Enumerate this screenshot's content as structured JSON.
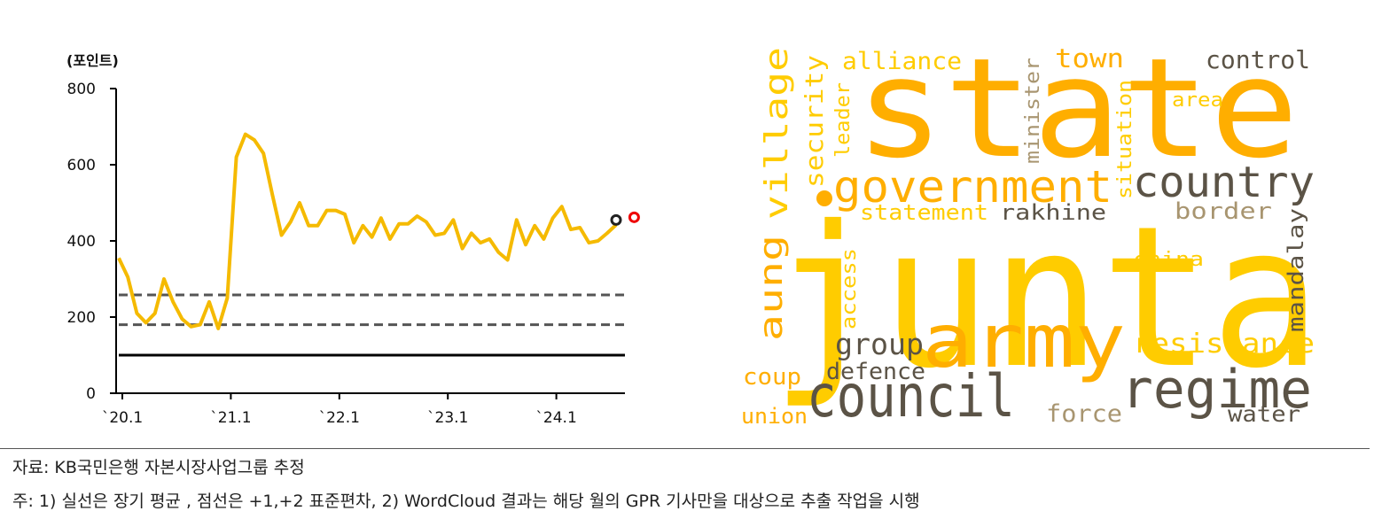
{
  "chart_data": [
    {
      "type": "line",
      "ylabel": "(포인트)",
      "ylim": [
        0,
        800
      ],
      "yticks": [
        0,
        200,
        400,
        600,
        800
      ],
      "xticks": [
        "`20.1",
        "`21.1",
        "`22.1",
        "`23.1",
        "`24.1"
      ],
      "xtick_month_index": [
        0,
        12,
        24,
        36,
        48
      ],
      "grid": false,
      "series": [
        {
          "color": "#F5BA00",
          "values": [
            355,
            305,
            210,
            185,
            210,
            300,
            240,
            195,
            175,
            180,
            240,
            170,
            250,
            620,
            680,
            665,
            630,
            520,
            415,
            450,
            500,
            440,
            440,
            480,
            480,
            470,
            395,
            440,
            410,
            460,
            405,
            445,
            445,
            465,
            450,
            415,
            420,
            455,
            380,
            420,
            395,
            405,
            370,
            350,
            455,
            390,
            440,
            405,
            460,
            490,
            430,
            435,
            395,
            400,
            420,
            442
          ]
        }
      ],
      "reference_lines": [
        {
          "value": 100,
          "style": "solid",
          "color": "#000000"
        },
        {
          "value": 180,
          "style": "dashed",
          "color": "#555555"
        },
        {
          "value": 258,
          "style": "dashed",
          "color": "#555555"
        }
      ],
      "markers": [
        {
          "month_index": 55,
          "value": 455,
          "color": "#222222"
        },
        {
          "month_index": 57,
          "value": 462,
          "color": "#EE0000"
        }
      ]
    },
    {
      "type": "wordcloud",
      "words": [
        {
          "text": "state",
          "color": "#FFAE00"
        },
        {
          "text": "junta",
          "color": "#FFCC00"
        },
        {
          "text": "army",
          "color": "#FFAE00"
        },
        {
          "text": "council",
          "color": "#5B5346"
        },
        {
          "text": "regime",
          "color": "#5B5346"
        },
        {
          "text": "government",
          "color": "#FFAE00"
        },
        {
          "text": "country",
          "color": "#5B5346"
        },
        {
          "text": "village",
          "color": "#FFCC00"
        },
        {
          "text": "aung",
          "color": "#FFAE00"
        },
        {
          "text": "security",
          "color": "#FFCC00"
        },
        {
          "text": "leader",
          "color": "#FFCC00"
        },
        {
          "text": "alliance",
          "color": "#FFCC00"
        },
        {
          "text": "town",
          "color": "#FFAE00"
        },
        {
          "text": "minister",
          "color": "#A89570"
        },
        {
          "text": "situation",
          "color": "#FFCC00"
        },
        {
          "text": "control",
          "color": "#5B5346"
        },
        {
          "text": "area",
          "color": "#FFCC00"
        },
        {
          "text": "statement",
          "color": "#FFCC00"
        },
        {
          "text": "rakhine",
          "color": "#5B5346"
        },
        {
          "text": "border",
          "color": "#A89570"
        },
        {
          "text": "china",
          "color": "#FFCC00"
        },
        {
          "text": "mandalay",
          "color": "#5B5346"
        },
        {
          "text": "access",
          "color": "#FFCC00"
        },
        {
          "text": "group",
          "color": "#5B5346"
        },
        {
          "text": "resistance",
          "color": "#FFCC00"
        },
        {
          "text": "defence",
          "color": "#5B5346"
        },
        {
          "text": "coup",
          "color": "#FFAE00"
        },
        {
          "text": "union",
          "color": "#FFAE00"
        },
        {
          "text": "force",
          "color": "#A89570"
        },
        {
          "text": "water",
          "color": "#5B5346"
        }
      ]
    }
  ],
  "footnotes": {
    "source": "자료: KB국민은행 자본시장사업그룹 추정",
    "note": "주: 1) 실선은 장기 평균 , 점선은 +1,+2 표준편차, 2) WordCloud 결과는 해당 월의 GPR 기사만을 대상으로 추출 작업을 시행"
  }
}
